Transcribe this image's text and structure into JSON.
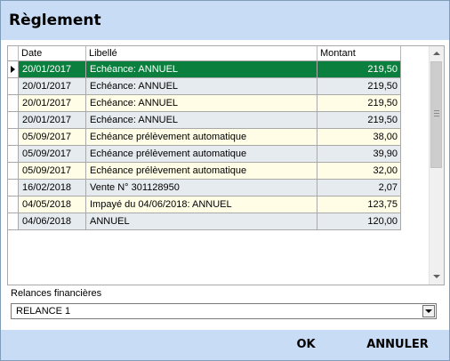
{
  "dialog": {
    "title": "Règlement"
  },
  "table": {
    "columns": [
      {
        "label": "Date"
      },
      {
        "label": "Libellé"
      },
      {
        "label": "Montant"
      }
    ],
    "selected_row": 0,
    "rows": [
      {
        "date": "20/01/2017",
        "libelle": "Echéance: ANNUEL",
        "montant": "219,50"
      },
      {
        "date": "20/01/2017",
        "libelle": "Echéance: ANNUEL",
        "montant": "219,50"
      },
      {
        "date": "20/01/2017",
        "libelle": "Echéance: ANNUEL",
        "montant": "219,50"
      },
      {
        "date": "20/01/2017",
        "libelle": "Echéance: ANNUEL",
        "montant": "219,50"
      },
      {
        "date": "05/09/2017",
        "libelle": "Echéance prélèvement automatique",
        "montant": "38,00"
      },
      {
        "date": "05/09/2017",
        "libelle": "Echéance prélèvement automatique",
        "montant": "39,90"
      },
      {
        "date": "05/09/2017",
        "libelle": "Echéance prélèvement automatique",
        "montant": "32,00"
      },
      {
        "date": "16/02/2018",
        "libelle": "Vente N° 301128950",
        "montant": "2,07"
      },
      {
        "date": "04/05/2018",
        "libelle": "Impayé du 04/06/2018: ANNUEL",
        "montant": "123,75"
      },
      {
        "date": "04/06/2018",
        "libelle": "ANNUEL",
        "montant": "120,00"
      }
    ]
  },
  "relances": {
    "label": "Relances financières",
    "selected": "RELANCE 1"
  },
  "footer": {
    "ok_label": "OK",
    "cancel_label": "ANNULER"
  },
  "colors": {
    "title_bar": "#c9dcf5",
    "selected_row": "#0b7f3e",
    "row_odd": "#fffde6",
    "row_even": "#e6ebef"
  },
  "icons": {
    "row_selector": "triangle-right-icon",
    "scroll_up": "triangle-up-icon",
    "scroll_down": "triangle-down-icon",
    "combo_dropdown": "chevron-down-icon"
  }
}
